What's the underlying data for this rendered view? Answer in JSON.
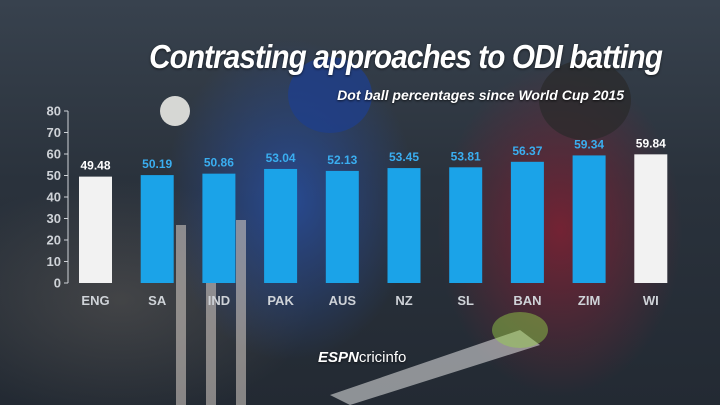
{
  "title": "Contrasting approaches to ODI batting",
  "subtitle": "Dot ball percentages since World Cup 2015",
  "brand": {
    "part1": "ESPN",
    "part2": "cricinfo"
  },
  "colors": {
    "highlight": "#f2f2f2",
    "bar": "#1ba3e8",
    "axis": "#cfd3d8",
    "label_blue": "#3aaef0",
    "label_white": "#ffffff"
  },
  "chart_data": {
    "type": "bar",
    "title": "Contrasting approaches to ODI batting",
    "subtitle": "Dot ball percentages since World Cup 2015",
    "xlabel": "",
    "ylabel": "",
    "ylim": [
      0,
      80
    ],
    "yticks": [
      0,
      10,
      20,
      30,
      40,
      50,
      60,
      70,
      80
    ],
    "grid": false,
    "categories": [
      "ENG",
      "SA",
      "IND",
      "PAK",
      "AUS",
      "NZ",
      "SL",
      "BAN",
      "ZIM",
      "WI"
    ],
    "values": [
      49.48,
      50.19,
      50.86,
      53.04,
      52.13,
      53.45,
      53.81,
      56.37,
      59.34,
      59.84
    ],
    "value_labels": [
      "49.48",
      "50.19",
      "50.86",
      "53.04",
      "52.13",
      "53.45",
      "53.81",
      "56.37",
      "59.34",
      "59.84"
    ],
    "highlighted": [
      "ENG",
      "WI"
    ]
  }
}
